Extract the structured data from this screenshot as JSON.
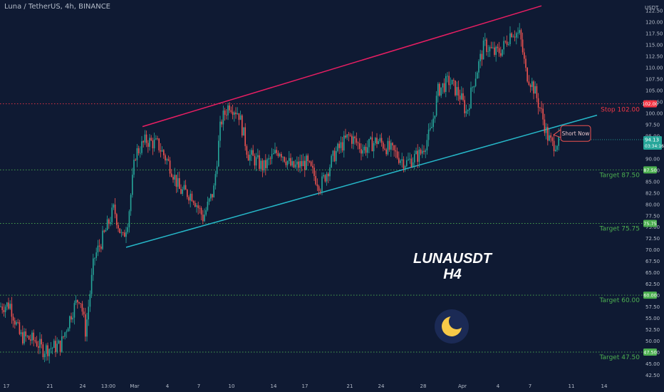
{
  "header": {
    "symbol_line": "Luna / TetherUS, 4h, BINANCE",
    "unit": "USDT"
  },
  "watermark": {
    "line1": "LUNAUSDT",
    "line2": "H4"
  },
  "colors": {
    "background": "#0f1a33",
    "bull": "#26a69a",
    "bear": "#ef5350",
    "upper_channel": "#e91e63",
    "lower_channel": "#26b8c9",
    "stop_line": "#f23645",
    "target_line": "#4caf50",
    "logo_ring": "#1b2a55",
    "logo_moon": "#f7c948"
  },
  "chart_data": {
    "type": "candlestick",
    "x_tick_labels": [
      "17",
      "21",
      "24",
      "13:00",
      "Mar",
      "4",
      "7",
      "10",
      "14",
      "17",
      "21",
      "24",
      "28",
      "Apr",
      "4",
      "7",
      "11",
      "14"
    ],
    "y_tick_labels": [
      "122.50",
      "120.00",
      "117.50",
      "115.00",
      "112.50",
      "110.00",
      "107.50",
      "105.00",
      "102.50",
      "100.00",
      "97.50",
      "95.00",
      "92.50",
      "90.00",
      "87.50",
      "85.00",
      "82.50",
      "80.00",
      "77.50",
      "75.00",
      "72.50",
      "70.00",
      "67.50",
      "65.00",
      "62.50",
      "60.00",
      "57.50",
      "55.00",
      "52.50",
      "50.00",
      "47.50",
      "45.00",
      "42.50"
    ],
    "ylim": [
      42.5,
      124
    ],
    "price_path": [
      {
        "x": 0,
        "y": 57.5
      },
      {
        "x": 14,
        "y": 58
      },
      {
        "x": 28,
        "y": 51
      },
      {
        "x": 50,
        "y": 50
      },
      {
        "x": 60,
        "y": 48
      },
      {
        "x": 85,
        "y": 49
      },
      {
        "x": 100,
        "y": 56
      },
      {
        "x": 112,
        "y": 60
      },
      {
        "x": 120,
        "y": 52
      },
      {
        "x": 132,
        "y": 68
      },
      {
        "x": 148,
        "y": 74
      },
      {
        "x": 160,
        "y": 79
      },
      {
        "x": 172,
        "y": 72
      },
      {
        "x": 180,
        "y": 77
      },
      {
        "x": 190,
        "y": 91
      },
      {
        "x": 205,
        "y": 94
      },
      {
        "x": 222,
        "y": 93
      },
      {
        "x": 240,
        "y": 88
      },
      {
        "x": 252,
        "y": 83
      },
      {
        "x": 270,
        "y": 82
      },
      {
        "x": 285,
        "y": 77
      },
      {
        "x": 300,
        "y": 83
      },
      {
        "x": 310,
        "y": 98
      },
      {
        "x": 322,
        "y": 102
      },
      {
        "x": 335,
        "y": 100
      },
      {
        "x": 348,
        "y": 91
      },
      {
        "x": 370,
        "y": 88
      },
      {
        "x": 392,
        "y": 92
      },
      {
        "x": 410,
        "y": 88
      },
      {
        "x": 430,
        "y": 89
      },
      {
        "x": 450,
        "y": 84
      },
      {
        "x": 470,
        "y": 91
      },
      {
        "x": 490,
        "y": 95
      },
      {
        "x": 510,
        "y": 92
      },
      {
        "x": 530,
        "y": 94
      },
      {
        "x": 555,
        "y": 91
      },
      {
        "x": 570,
        "y": 89
      },
      {
        "x": 590,
        "y": 91
      },
      {
        "x": 605,
        "y": 96
      },
      {
        "x": 615,
        "y": 105
      },
      {
        "x": 630,
        "y": 107
      },
      {
        "x": 645,
        "y": 104
      },
      {
        "x": 655,
        "y": 100
      },
      {
        "x": 665,
        "y": 107
      },
      {
        "x": 680,
        "y": 115
      },
      {
        "x": 695,
        "y": 113
      },
      {
        "x": 705,
        "y": 114
      },
      {
        "x": 718,
        "y": 118
      },
      {
        "x": 730,
        "y": 117
      },
      {
        "x": 738,
        "y": 109
      },
      {
        "x": 748,
        "y": 106
      },
      {
        "x": 760,
        "y": 100
      },
      {
        "x": 768,
        "y": 95
      },
      {
        "x": 775,
        "y": 93
      },
      {
        "x": 785,
        "y": 94
      }
    ],
    "channel": {
      "upper": {
        "from": {
          "x": 200,
          "y": 97
        },
        "to": {
          "x": 760,
          "y": 123.5
        }
      },
      "lower": {
        "from": {
          "x": 177,
          "y": 70.5
        },
        "to": {
          "x": 838,
          "y": 99.5
        }
      }
    },
    "levels": [
      {
        "kind": "stop",
        "value": 102.0,
        "label": "Stop 102.00",
        "tag": "102.00"
      },
      {
        "kind": "target",
        "value": 87.5,
        "label": "Target 87.50",
        "tag": "87.50"
      },
      {
        "kind": "target",
        "value": 75.75,
        "label": "Target 75.75",
        "tag": "75.75"
      },
      {
        "kind": "target",
        "value": 60.0,
        "label": "Target 60.00",
        "tag": "60.00"
      },
      {
        "kind": "target",
        "value": 47.5,
        "label": "Target 47.50",
        "tag": "47.50"
      }
    ],
    "current_price": {
      "value": 94.13,
      "label": "94.13",
      "countdown": "03:34:16"
    },
    "annotation": {
      "text": "Short Now",
      "value": 95.5
    }
  }
}
